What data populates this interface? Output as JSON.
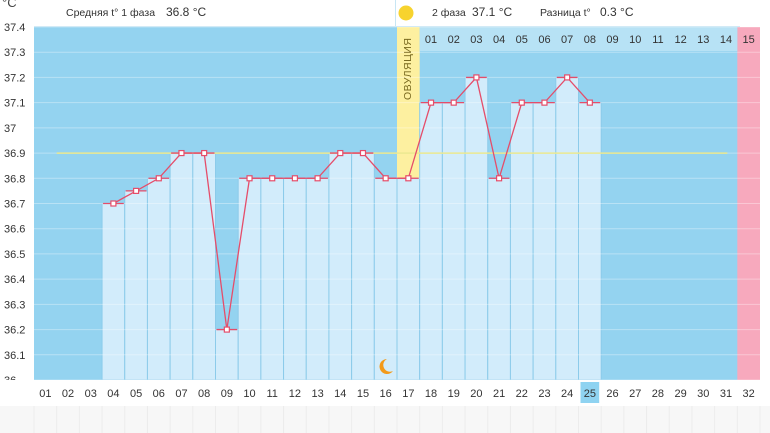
{
  "header": {
    "unit": "°C",
    "phase1_label": "Средняя t° 1 фаза",
    "phase1_value": "36.8 °C",
    "phase2_label": "2 фаза",
    "phase2_value": "37.1 °C",
    "diff_label": "Разница t°",
    "diff_value": "0.3 °C"
  },
  "colors": {
    "plot_bg": "#94d3f0",
    "bar_fill": "#d2ecfb",
    "bar_stroke": "#8ccbea",
    "line": "#e54d6a",
    "marker_fill": "#ffffff",
    "coverline": "#ebe890",
    "ovulation_band": "#fdf0a0",
    "last_day_band": "#f7a9bd",
    "cycle_day_strip": "#b7e2f5",
    "sun": "#f7d32e",
    "moon": "#f39a1a",
    "selected_day": "#8fd3f1"
  },
  "chart_data": {
    "type": "line",
    "title": "",
    "xlabel": "",
    "ylabel": "°C",
    "ylim": [
      36.0,
      37.4
    ],
    "y_ticks": [
      "36",
      "36.1",
      "36.2",
      "36.3",
      "36.4",
      "36.5",
      "36.6",
      "36.7",
      "36.8",
      "36.9",
      "37",
      "37.1",
      "37.2",
      "37.3",
      "37.4"
    ],
    "x_dates": [
      "01",
      "02",
      "03",
      "04",
      "05",
      "06",
      "07",
      "08",
      "09",
      "10",
      "11",
      "12",
      "13",
      "14",
      "15",
      "16",
      "17",
      "18",
      "19",
      "20",
      "21",
      "22",
      "23",
      "24",
      "25",
      "26",
      "27",
      "28",
      "29",
      "30",
      "31",
      "32"
    ],
    "selected_date": "25",
    "series": [
      {
        "x": [
          "04",
          "05",
          "06",
          "07",
          "08",
          "09",
          "10",
          "11",
          "12",
          "13",
          "14",
          "15",
          "16",
          "17",
          "18",
          "19",
          "20",
          "21",
          "22",
          "23",
          "24",
          "25"
        ],
        "values": [
          36.7,
          36.75,
          36.8,
          36.9,
          36.9,
          36.2,
          36.8,
          36.8,
          36.8,
          36.8,
          36.9,
          36.9,
          36.8,
          36.8,
          37.1,
          37.1,
          37.2,
          36.8,
          37.1,
          37.1,
          37.2,
          37.1
        ]
      }
    ],
    "coverline": 36.9,
    "ovulation_day": "17",
    "ovulation_label": "ОВУЛЯЦИЯ",
    "second_phase_days": [
      "01",
      "02",
      "03",
      "04",
      "05",
      "06",
      "07",
      "08",
      "09",
      "10",
      "11",
      "12",
      "13",
      "14",
      "15"
    ],
    "grid": true,
    "legend": "none"
  }
}
